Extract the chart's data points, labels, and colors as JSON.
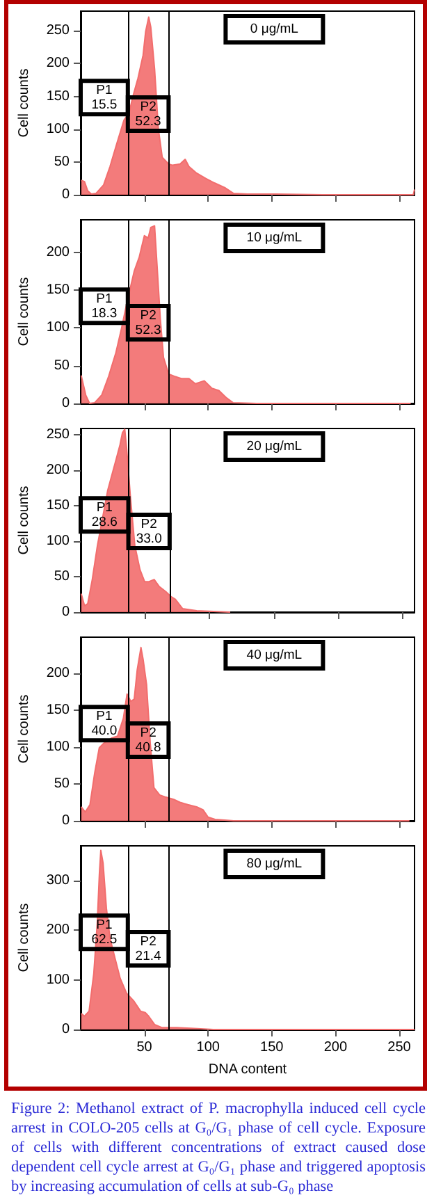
{
  "chart_data": [
    {
      "type": "area",
      "ylabel": "Cell counts",
      "marker": "none",
      "color": "#f26d6d",
      "xlim": [
        0,
        262
      ],
      "xticks": [
        50,
        100,
        150,
        200,
        250
      ],
      "ylim": [
        0,
        280
      ],
      "yticks": [
        0,
        50,
        100,
        150,
        200,
        250
      ],
      "tick_labels": "y",
      "x": [
        0.4,
        3,
        5.5,
        8.4,
        12,
        18,
        23,
        28.5,
        34,
        38,
        41,
        45,
        49,
        51,
        53.4,
        55,
        58,
        61,
        64,
        69,
        72,
        78,
        82,
        85,
        91,
        98,
        105,
        113,
        120,
        131,
        153,
        190,
        261,
        262
      ],
      "values": [
        22,
        20,
        6,
        1,
        2,
        15,
        43,
        79,
        114,
        125,
        150,
        178,
        213,
        249,
        271,
        256,
        192,
        100,
        57,
        47,
        45,
        47,
        54,
        43,
        33,
        25,
        18,
        11,
        2,
        1,
        1,
        0,
        0,
        8
      ],
      "ref_lines": [
        {
          "axis": "x",
          "value": 37,
          "color": "#000000"
        },
        {
          "axis": "x",
          "value": 69,
          "color": "#000000"
        }
      ],
      "annotations": [
        "0 μg/mL",
        "P1\n15.5",
        "P2\n52.3"
      ]
    },
    {
      "type": "area",
      "ylabel": "Cell counts",
      "marker": "none",
      "color": "#f26d6d",
      "xlim": [
        0,
        262
      ],
      "xticks": [
        50,
        100,
        150,
        200,
        250
      ],
      "ylim": [
        0,
        243
      ],
      "yticks": [
        0,
        50,
        100,
        150,
        200
      ],
      "tick_labels": "y",
      "x": [
        0.4,
        4,
        7,
        11,
        16.5,
        22,
        27.6,
        32,
        36,
        39,
        42,
        46,
        50,
        53,
        55,
        58,
        60,
        62.5,
        65,
        69,
        73.5,
        79,
        85,
        90,
        97,
        103,
        108.5,
        114,
        119.5,
        138,
        259
      ],
      "values": [
        37,
        11,
        0,
        1,
        11,
        36,
        67,
        99,
        131,
        153,
        175,
        194,
        222,
        219,
        233,
        235,
        181,
        112,
        61,
        39,
        36,
        33,
        33,
        26,
        30,
        20,
        17,
        8,
        1,
        0,
        0
      ],
      "ref_lines": [
        {
          "axis": "x",
          "value": 37,
          "color": "#000000"
        },
        {
          "axis": "x",
          "value": 69,
          "color": "#000000"
        }
      ],
      "annotations": [
        "10 μg/mL",
        "P1\n18.3",
        "P2\n52.3"
      ]
    },
    {
      "type": "area",
      "ylabel": "Cell counts",
      "marker": "none",
      "color": "#f26d6d",
      "xlim": [
        0,
        259
      ],
      "xticks": [
        50,
        100,
        150,
        200,
        250
      ],
      "ylim": [
        0,
        259
      ],
      "yticks": [
        0,
        50,
        100,
        150,
        200,
        250
      ],
      "tick_labels": "y",
      "x": [
        0.4,
        3,
        5.5,
        9,
        13,
        16.5,
        21,
        24,
        27.6,
        30.5,
        32.4,
        34.2,
        35.7,
        38.6,
        42,
        46,
        49.6,
        53,
        57,
        61,
        66,
        70,
        73.5,
        79,
        90,
        116
      ],
      "values": [
        26,
        9,
        12,
        46,
        94,
        128,
        172,
        192,
        216,
        236,
        253,
        258,
        230,
        162,
        94,
        60,
        43,
        43,
        46,
        36,
        29,
        22,
        18,
        5,
        2,
        0
      ],
      "ref_lines": [
        {
          "axis": "x",
          "value": 37,
          "color": "#000000"
        },
        {
          "axis": "x",
          "value": 69,
          "color": "#000000"
        }
      ],
      "annotations": [
        "20 μg/mL",
        "P1\n28.6",
        "P2\n33.0"
      ]
    },
    {
      "type": "area",
      "ylabel": "Cell counts",
      "marker": "none",
      "color": "#f26d6d",
      "xlim": [
        0,
        262
      ],
      "xticks": [
        50,
        100,
        150,
        200,
        250
      ],
      "ylim": [
        0,
        249
      ],
      "yticks": [
        0,
        50,
        100,
        150,
        200
      ],
      "tick_labels": "y",
      "x": [
        0.4,
        3.6,
        7.3,
        11,
        14.6,
        18,
        24,
        29,
        33.5,
        36.4,
        39.3,
        42,
        44.4,
        47.3,
        49,
        51.7,
        54.6,
        57.5,
        62,
        67,
        73,
        78,
        84,
        91,
        96,
        100,
        105.5,
        113,
        120,
        258
      ],
      "values": [
        19,
        12,
        22,
        65,
        99,
        105,
        112,
        115,
        139,
        172,
        162,
        165,
        205,
        235,
        219,
        185,
        105,
        45,
        35,
        32,
        29,
        25,
        22,
        19,
        15,
        5,
        2,
        1,
        0,
        0
      ],
      "ref_lines": [
        {
          "axis": "x",
          "value": 37,
          "color": "#000000"
        },
        {
          "axis": "x",
          "value": 69,
          "color": "#000000"
        }
      ],
      "annotations": [
        "40 μg/mL",
        "P1\n40.0",
        "P2\n40.8"
      ]
    },
    {
      "type": "area",
      "xlabel": "DNA content",
      "ylabel": "Cell counts",
      "marker": "none",
      "color": "#f26d6d",
      "xlim": [
        0,
        262
      ],
      "xticks": [
        50,
        100,
        150,
        200,
        250
      ],
      "ylim": [
        0,
        370
      ],
      "yticks": [
        0,
        100,
        200,
        300
      ],
      "x": [
        0.4,
        3,
        6.6,
        10.3,
        13,
        14.7,
        15.8,
        17.6,
        20.2,
        23,
        27,
        31,
        36,
        41.5,
        47,
        50.7,
        53.3,
        58,
        63.6,
        74.6,
        89,
        104,
        262
      ],
      "values": [
        32,
        27,
        37,
        113,
        214,
        315,
        361,
        335,
        244,
        184,
        143,
        103,
        73,
        58,
        37,
        34,
        27,
        10,
        4,
        4,
        2,
        0,
        0
      ],
      "ref_lines": [
        {
          "axis": "x",
          "value": 37,
          "color": "#000000"
        },
        {
          "axis": "x",
          "value": 69,
          "color": "#000000"
        }
      ],
      "annotations": [
        "80 μg/mL",
        "P1\n62.5",
        "P2\n21.4",
        "Figure 2: Methanol extract of P. macrophylla induced cell cycle arrest in COLO-205 cells at G₀/G₁ phase of cell cycle. Exposure of cells with different concentrations of extract caused dose dependent cell cycle arrest at G₀/G₁ phase and triggered apoptosis by increasing accumulation of cells at sub-G₀ phase"
      ]
    }
  ]
}
